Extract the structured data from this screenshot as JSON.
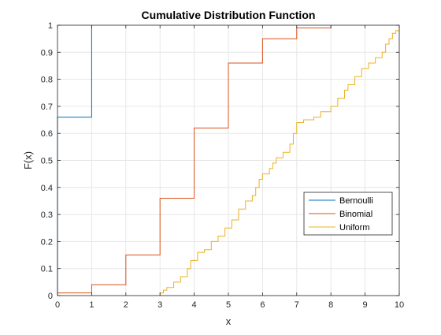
{
  "chart_data": {
    "type": "line",
    "step": true,
    "title": "Cumulative Distribution Function",
    "xlabel": "x",
    "ylabel": "F(x)",
    "xlim": [
      0,
      10
    ],
    "ylim": [
      0,
      1
    ],
    "xticks": [
      0,
      1,
      2,
      3,
      4,
      5,
      6,
      7,
      8,
      9,
      10
    ],
    "yticks": [
      0,
      0.1,
      0.2,
      0.3,
      0.4,
      0.5,
      0.6,
      0.7,
      0.8,
      0.9,
      1
    ],
    "xtick_labels": [
      "0",
      "1",
      "2",
      "3",
      "4",
      "5",
      "6",
      "7",
      "8",
      "9",
      "10"
    ],
    "ytick_labels": [
      "0",
      "0.1",
      "0.2",
      "0.3",
      "0.4",
      "0.5",
      "0.6",
      "0.7",
      "0.8",
      "0.9",
      "1"
    ],
    "grid": true,
    "legend_position": "center-right",
    "series": [
      {
        "name": "Bernoulli",
        "color": "#0072BD",
        "points": [
          [
            0,
            0
          ],
          [
            0,
            0.66
          ],
          [
            1,
            0.66
          ],
          [
            1,
            1
          ]
        ]
      },
      {
        "name": "Binomial",
        "color": "#D95319",
        "points": [
          [
            0,
            0.01
          ],
          [
            1,
            0.01
          ],
          [
            1,
            0.04
          ],
          [
            2,
            0.04
          ],
          [
            2,
            0.15
          ],
          [
            3,
            0.15
          ],
          [
            3,
            0.36
          ],
          [
            4,
            0.36
          ],
          [
            4,
            0.62
          ],
          [
            5,
            0.62
          ],
          [
            5,
            0.86
          ],
          [
            6,
            0.86
          ],
          [
            6,
            0.95
          ],
          [
            7,
            0.95
          ],
          [
            7,
            0.99
          ],
          [
            8,
            0.99
          ],
          [
            8,
            1
          ]
        ]
      },
      {
        "name": "Uniform",
        "color": "#EDB120",
        "points": [
          [
            3.0,
            0
          ],
          [
            3.0,
            0.01
          ],
          [
            3.1,
            0.01
          ],
          [
            3.1,
            0.02
          ],
          [
            3.2,
            0.02
          ],
          [
            3.2,
            0.03
          ],
          [
            3.4,
            0.03
          ],
          [
            3.4,
            0.05
          ],
          [
            3.6,
            0.05
          ],
          [
            3.6,
            0.07
          ],
          [
            3.8,
            0.07
          ],
          [
            3.8,
            0.1
          ],
          [
            3.9,
            0.1
          ],
          [
            3.9,
            0.13
          ],
          [
            4.1,
            0.13
          ],
          [
            4.1,
            0.16
          ],
          [
            4.3,
            0.16
          ],
          [
            4.3,
            0.17
          ],
          [
            4.5,
            0.17
          ],
          [
            4.5,
            0.2
          ],
          [
            4.7,
            0.2
          ],
          [
            4.7,
            0.22
          ],
          [
            4.9,
            0.22
          ],
          [
            4.9,
            0.25
          ],
          [
            5.1,
            0.25
          ],
          [
            5.1,
            0.28
          ],
          [
            5.3,
            0.28
          ],
          [
            5.3,
            0.32
          ],
          [
            5.5,
            0.32
          ],
          [
            5.5,
            0.35
          ],
          [
            5.7,
            0.35
          ],
          [
            5.7,
            0.37
          ],
          [
            5.8,
            0.37
          ],
          [
            5.8,
            0.4
          ],
          [
            5.9,
            0.4
          ],
          [
            5.9,
            0.43
          ],
          [
            6.0,
            0.43
          ],
          [
            6.0,
            0.45
          ],
          [
            6.2,
            0.45
          ],
          [
            6.2,
            0.47
          ],
          [
            6.3,
            0.47
          ],
          [
            6.3,
            0.49
          ],
          [
            6.4,
            0.49
          ],
          [
            6.4,
            0.51
          ],
          [
            6.6,
            0.51
          ],
          [
            6.6,
            0.53
          ],
          [
            6.8,
            0.53
          ],
          [
            6.8,
            0.56
          ],
          [
            6.9,
            0.56
          ],
          [
            6.9,
            0.6
          ],
          [
            7.0,
            0.6
          ],
          [
            7.0,
            0.64
          ],
          [
            7.2,
            0.64
          ],
          [
            7.2,
            0.65
          ],
          [
            7.5,
            0.65
          ],
          [
            7.5,
            0.66
          ],
          [
            7.7,
            0.66
          ],
          [
            7.7,
            0.68
          ],
          [
            8.0,
            0.68
          ],
          [
            8.0,
            0.7
          ],
          [
            8.2,
            0.7
          ],
          [
            8.2,
            0.73
          ],
          [
            8.4,
            0.73
          ],
          [
            8.4,
            0.76
          ],
          [
            8.5,
            0.76
          ],
          [
            8.5,
            0.78
          ],
          [
            8.7,
            0.78
          ],
          [
            8.7,
            0.81
          ],
          [
            8.9,
            0.81
          ],
          [
            8.9,
            0.84
          ],
          [
            9.1,
            0.84
          ],
          [
            9.1,
            0.86
          ],
          [
            9.3,
            0.86
          ],
          [
            9.3,
            0.88
          ],
          [
            9.5,
            0.88
          ],
          [
            9.5,
            0.9
          ],
          [
            9.6,
            0.9
          ],
          [
            9.6,
            0.93
          ],
          [
            9.7,
            0.93
          ],
          [
            9.7,
            0.95
          ],
          [
            9.8,
            0.95
          ],
          [
            9.8,
            0.97
          ],
          [
            9.9,
            0.97
          ],
          [
            9.9,
            0.98
          ],
          [
            10,
            0.98
          ]
        ]
      }
    ]
  }
}
